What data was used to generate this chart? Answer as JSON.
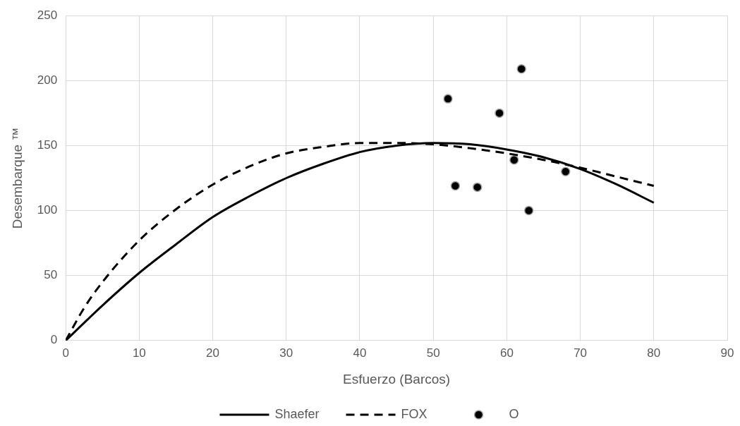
{
  "chart_data": {
    "type": "line",
    "xlabel": "Esfuerzo (Barcos)",
    "ylabel": "Desembarque ™",
    "xlim": [
      0,
      90
    ],
    "xticks": [
      0,
      10,
      20,
      30,
      40,
      50,
      60,
      70,
      80,
      90
    ],
    "ylim": [
      0,
      250
    ],
    "yticks": [
      0,
      50,
      100,
      150,
      200,
      250
    ],
    "grid": true,
    "legend": "bottom",
    "marker": "none",
    "series": [
      {
        "name": "Shaefer",
        "color": "#000000",
        "line_style": "solid",
        "x": [
          0,
          5,
          10,
          15,
          20,
          25,
          30,
          35,
          40,
          45,
          50,
          55,
          60,
          65,
          70,
          75,
          80
        ],
        "values": [
          0,
          27,
          52,
          74,
          95,
          111,
          125,
          136,
          145,
          150,
          152,
          151,
          147,
          141,
          132,
          120,
          106
        ]
      },
      {
        "name": "FOX",
        "color": "#000000",
        "line_style": "dashed",
        "x": [
          0,
          2.5,
          5,
          10,
          15,
          20,
          25,
          30,
          35,
          40,
          45,
          50,
          55,
          60,
          65,
          70,
          75,
          80
        ],
        "values": [
          0,
          25,
          45,
          77,
          101,
          120,
          134,
          144,
          149,
          152,
          152,
          151,
          148,
          144,
          139,
          133,
          126,
          119
        ]
      },
      {
        "name": "O",
        "type": "scatter",
        "color": "#000000",
        "marker": "circle",
        "x": [
          52,
          53,
          56,
          59,
          61,
          62,
          63,
          68
        ],
        "values": [
          186,
          119,
          118,
          175,
          139,
          209,
          100,
          130
        ]
      }
    ]
  }
}
